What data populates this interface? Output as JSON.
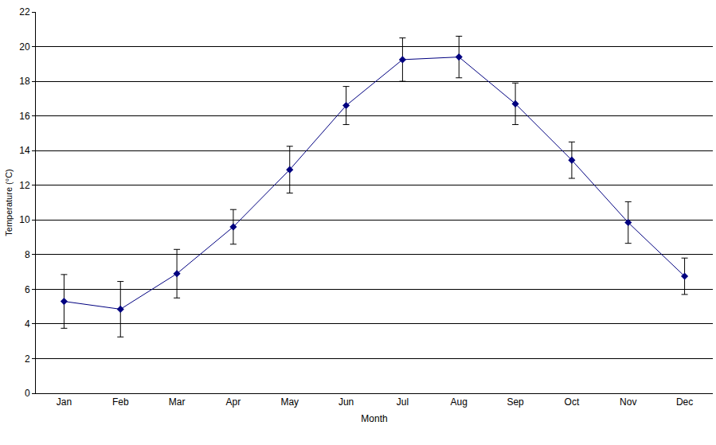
{
  "chart_data": {
    "type": "line",
    "x_label": "Month",
    "y_label": "Temperature (°C)",
    "categories": [
      "Jan",
      "Feb",
      "Mar",
      "Apr",
      "May",
      "Jun",
      "Jul",
      "Aug",
      "Sep",
      "Oct",
      "Nov",
      "Dec"
    ],
    "values": [
      5.3,
      4.85,
      6.9,
      9.6,
      12.9,
      16.6,
      19.25,
      19.4,
      16.7,
      13.45,
      9.85,
      6.75
    ],
    "errors": [
      1.55,
      1.6,
      1.4,
      1.0,
      1.35,
      1.1,
      1.25,
      1.2,
      1.2,
      1.05,
      1.2,
      1.05
    ],
    "color": "#000080",
    "marker": "diamond",
    "ylim": [
      0,
      22
    ],
    "yticks": [
      0,
      2,
      4,
      6,
      8,
      10,
      12,
      14,
      16,
      18,
      20,
      22
    ],
    "grid": true
  }
}
